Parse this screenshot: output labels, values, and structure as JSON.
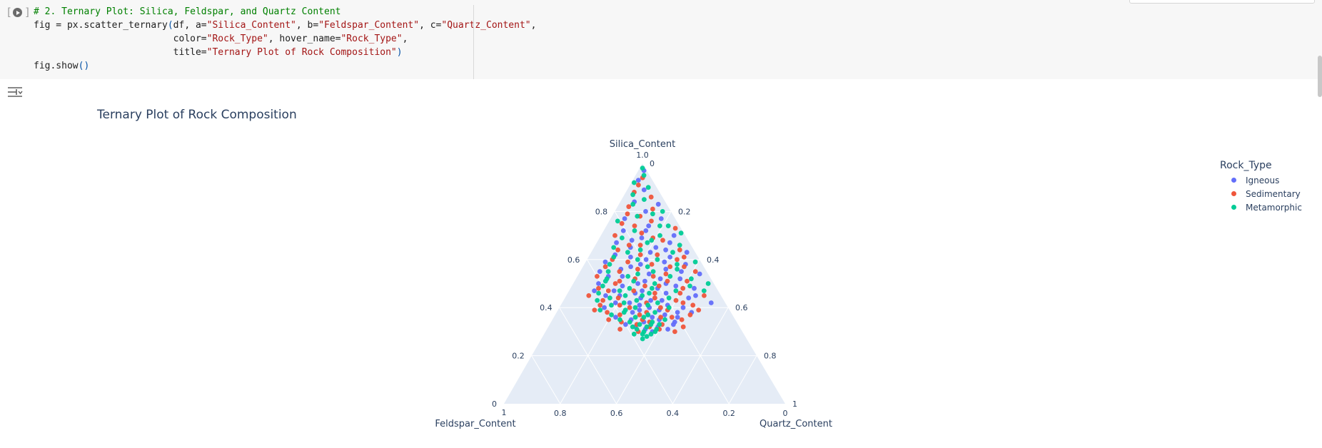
{
  "cell": {
    "run_bracket_open": "[",
    "run_bracket_close": "]",
    "code_lines": [
      [
        {
          "t": "# 2. Ternary Plot: Silica, Feldspar, and Quartz Content",
          "c": "com"
        }
      ],
      [
        {
          "t": "fig = px.scatter_ternary",
          "c": ""
        },
        {
          "t": "(",
          "c": "par"
        },
        {
          "t": "df, a=",
          "c": ""
        },
        {
          "t": "\"Silica_Content\"",
          "c": "str"
        },
        {
          "t": ", b=",
          "c": ""
        },
        {
          "t": "\"Feldspar_Content\"",
          "c": "str"
        },
        {
          "t": ", c=",
          "c": ""
        },
        {
          "t": "\"Quartz_Content\"",
          "c": "str"
        },
        {
          "t": ",",
          "c": ""
        }
      ],
      [
        {
          "t": "                         color=",
          "c": ""
        },
        {
          "t": "\"Rock_Type\"",
          "c": "str"
        },
        {
          "t": ", hover_name=",
          "c": ""
        },
        {
          "t": "\"Rock_Type\"",
          "c": "str"
        },
        {
          "t": ",",
          "c": ""
        }
      ],
      [
        {
          "t": "                         title=",
          "c": ""
        },
        {
          "t": "\"Ternary Plot of Rock Composition\"",
          "c": "str"
        },
        {
          "t": ")",
          "c": "par"
        }
      ],
      [
        {
          "t": "fig.show",
          "c": ""
        },
        {
          "t": "()",
          "c": "par"
        }
      ]
    ]
  },
  "output": {
    "icon": "output-settings-icon"
  },
  "chart_data": {
    "type": "scatter",
    "subtype": "ternary",
    "title": "Ternary Plot of Rock Composition",
    "axes": {
      "a": {
        "label": "Silica_Content",
        "ticks": [
          "0",
          "0.2",
          "0.4",
          "0.6",
          "0.8",
          "1.0"
        ]
      },
      "b": {
        "label": "Feldspar_Content",
        "ticks": [
          "1",
          "0.8",
          "0.6",
          "0.4",
          "0.2",
          "0"
        ]
      },
      "c": {
        "label": "Quartz_Content",
        "ticks": [
          "0",
          "0.2",
          "0.4",
          "0.6",
          "0.8",
          "1"
        ]
      }
    },
    "legend": {
      "title": "Rock_Type",
      "placement": "top-right"
    },
    "bg_color": "#e5ecf6",
    "grid": true,
    "series": [
      {
        "name": "Igneous",
        "color": "#636efa",
        "points": [
          [
            0.97,
            0.01
          ],
          [
            0.93,
            0.05
          ],
          [
            0.89,
            0.05
          ],
          [
            0.84,
            0.11
          ],
          [
            0.83,
            0.03
          ],
          [
            0.8,
            0.09
          ],
          [
            0.77,
            0.05
          ],
          [
            0.77,
            0.18
          ],
          [
            0.74,
            0.11
          ],
          [
            0.72,
            0.21
          ],
          [
            0.7,
            0.04
          ],
          [
            0.69,
            0.16
          ],
          [
            0.67,
            0.07
          ],
          [
            0.67,
            0.26
          ],
          [
            0.65,
            0.22
          ],
          [
            0.65,
            0.13
          ],
          [
            0.63,
            0.03
          ],
          [
            0.62,
            0.29
          ],
          [
            0.61,
            0.1
          ],
          [
            0.6,
            0.19
          ],
          [
            0.59,
            0.34
          ],
          [
            0.58,
            0.06
          ],
          [
            0.57,
            0.26
          ],
          [
            0.56,
            0.14
          ],
          [
            0.55,
            0.38
          ],
          [
            0.54,
            0.21
          ],
          [
            0.54,
            0.03
          ],
          [
            0.53,
            0.31
          ],
          [
            0.52,
            0.11
          ],
          [
            0.51,
            0.24
          ],
          [
            0.5,
            0.41
          ],
          [
            0.5,
            0.17
          ],
          [
            0.49,
            0.33
          ],
          [
            0.48,
            0.08
          ],
          [
            0.47,
            0.27
          ],
          [
            0.47,
            0.44
          ],
          [
            0.46,
            0.19
          ],
          [
            0.45,
            0.36
          ],
          [
            0.44,
            0.12
          ],
          [
            0.44,
            0.29
          ],
          [
            0.43,
            0.22
          ],
          [
            0.42,
            0.39
          ],
          [
            0.42,
            0.05
          ],
          [
            0.41,
            0.31
          ],
          [
            0.4,
            0.16
          ],
          [
            0.4,
            0.44
          ],
          [
            0.39,
            0.25
          ],
          [
            0.38,
            0.35
          ],
          [
            0.38,
            0.14
          ],
          [
            0.37,
            0.3
          ],
          [
            0.36,
            0.2
          ],
          [
            0.36,
            0.42
          ],
          [
            0.35,
            0.27
          ],
          [
            0.34,
            0.33
          ],
          [
            0.33,
            0.23
          ],
          [
            0.32,
            0.29
          ],
          [
            0.32,
            0.37
          ],
          [
            0.31,
            0.26
          ],
          [
            0.3,
            0.32
          ],
          [
            0.72,
            0.13
          ],
          [
            0.68,
            0.2
          ],
          [
            0.63,
            0.16
          ],
          [
            0.58,
            0.22
          ],
          [
            0.56,
            0.3
          ],
          [
            0.52,
            0.18
          ],
          [
            0.48,
            0.21
          ],
          [
            0.46,
            0.3
          ],
          [
            0.43,
            0.26
          ],
          [
            0.41,
            0.21
          ],
          [
            0.39,
            0.32
          ],
          [
            0.37,
            0.24
          ],
          [
            0.35,
            0.37
          ],
          [
            0.61,
            0.24
          ],
          [
            0.64,
            0.1
          ],
          [
            0.53,
            0.36
          ],
          [
            0.5,
            0.27
          ],
          [
            0.45,
            0.09
          ],
          [
            0.49,
            0.14
          ],
          [
            0.55,
            0.09
          ],
          [
            0.59,
            0.13
          ],
          [
            0.42,
            0.34
          ],
          [
            0.4,
            0.28
          ],
          [
            0.38,
            0.19
          ],
          [
            0.36,
            0.29
          ],
          [
            0.34,
            0.22
          ],
          [
            0.33,
            0.4
          ],
          [
            0.31,
            0.34
          ],
          [
            0.45,
            0.41
          ],
          [
            0.47,
            0.37
          ]
        ]
      },
      {
        "name": "Sedimentary",
        "color": "#ef553b",
        "points": [
          [
            0.94,
            0.03
          ],
          [
            0.91,
            0.06
          ],
          [
            0.88,
            0.09
          ],
          [
            0.86,
            0.04
          ],
          [
            0.82,
            0.14
          ],
          [
            0.81,
            0.06
          ],
          [
            0.79,
            0.16
          ],
          [
            0.76,
            0.09
          ],
          [
            0.75,
            0.2
          ],
          [
            0.73,
            0.02
          ],
          [
            0.71,
            0.15
          ],
          [
            0.7,
            0.25
          ],
          [
            0.68,
            0.09
          ],
          [
            0.66,
            0.18
          ],
          [
            0.64,
            0.27
          ],
          [
            0.64,
            0.05
          ],
          [
            0.62,
            0.14
          ],
          [
            0.6,
            0.31
          ],
          [
            0.6,
            0.08
          ],
          [
            0.58,
            0.18
          ],
          [
            0.57,
            0.35
          ],
          [
            0.56,
            0.24
          ],
          [
            0.55,
            0.04
          ],
          [
            0.54,
            0.15
          ],
          [
            0.53,
            0.4
          ],
          [
            0.52,
            0.27
          ],
          [
            0.51,
            0.09
          ],
          [
            0.5,
            0.35
          ],
          [
            0.49,
            0.2
          ],
          [
            0.48,
            0.42
          ],
          [
            0.48,
            0.12
          ],
          [
            0.47,
            0.3
          ],
          [
            0.46,
            0.23
          ],
          [
            0.45,
            0.47
          ],
          [
            0.45,
            0.06
          ],
          [
            0.44,
            0.37
          ],
          [
            0.43,
            0.17
          ],
          [
            0.42,
            0.28
          ],
          [
            0.41,
            0.45
          ],
          [
            0.41,
            0.12
          ],
          [
            0.4,
            0.35
          ],
          [
            0.39,
            0.22
          ],
          [
            0.39,
            0.48
          ],
          [
            0.38,
            0.3
          ],
          [
            0.37,
            0.15
          ],
          [
            0.37,
            0.4
          ],
          [
            0.36,
            0.26
          ],
          [
            0.35,
            0.19
          ],
          [
            0.35,
            0.45
          ],
          [
            0.34,
            0.31
          ],
          [
            0.33,
            0.36
          ],
          [
            0.32,
            0.2
          ],
          [
            0.31,
            0.43
          ],
          [
            0.31,
            0.29
          ],
          [
            0.3,
            0.24
          ],
          [
            0.69,
            0.12
          ],
          [
            0.66,
            0.22
          ],
          [
            0.62,
            0.2
          ],
          [
            0.59,
            0.26
          ],
          [
            0.57,
            0.12
          ],
          [
            0.55,
            0.31
          ],
          [
            0.53,
            0.2
          ],
          [
            0.51,
            0.33
          ],
          [
            0.49,
            0.25
          ],
          [
            0.46,
            0.14
          ],
          [
            0.44,
            0.24
          ],
          [
            0.43,
            0.43
          ],
          [
            0.41,
            0.38
          ],
          [
            0.39,
            0.11
          ],
          [
            0.37,
            0.33
          ],
          [
            0.36,
            0.22
          ],
          [
            0.34,
            0.41
          ],
          [
            0.33,
            0.27
          ],
          [
            0.51,
            0.16
          ],
          [
            0.57,
            0.07
          ],
          [
            0.47,
            0.39
          ],
          [
            0.42,
            0.15
          ],
          [
            0.4,
            0.24
          ],
          [
            0.35,
            0.33
          ],
          [
            0.38,
            0.44
          ],
          [
            0.32,
            0.32
          ],
          [
            0.3,
            0.37
          ],
          [
            0.61,
            0.05
          ],
          [
            0.74,
            0.16
          ],
          [
            0.78,
            0.12
          ]
        ]
      },
      {
        "name": "Metamorphic",
        "color": "#00cc96",
        "points": [
          [
            0.98,
            0.01
          ],
          [
            0.95,
            0.02
          ],
          [
            0.92,
            0.07
          ],
          [
            0.9,
            0.03
          ],
          [
            0.87,
            0.1
          ],
          [
            0.85,
            0.07
          ],
          [
            0.83,
            0.12
          ],
          [
            0.8,
            0.03
          ],
          [
            0.78,
            0.13
          ],
          [
            0.76,
            0.21
          ],
          [
            0.74,
            0.07
          ],
          [
            0.72,
            0.17
          ],
          [
            0.71,
            0.01
          ],
          [
            0.69,
            0.23
          ],
          [
            0.68,
            0.13
          ],
          [
            0.66,
            0.04
          ],
          [
            0.65,
            0.28
          ],
          [
            0.64,
            0.19
          ],
          [
            0.63,
            0.08
          ],
          [
            0.61,
            0.3
          ],
          [
            0.6,
            0.15
          ],
          [
            0.59,
            0.02
          ],
          [
            0.58,
            0.33
          ],
          [
            0.57,
            0.2
          ],
          [
            0.56,
            0.1
          ],
          [
            0.55,
            0.35
          ],
          [
            0.54,
            0.25
          ],
          [
            0.53,
            0.14
          ],
          [
            0.52,
            0.37
          ],
          [
            0.51,
            0.28
          ],
          [
            0.5,
            0.02
          ],
          [
            0.5,
            0.21
          ],
          [
            0.49,
            0.4
          ],
          [
            0.48,
            0.31
          ],
          [
            0.47,
            0.15
          ],
          [
            0.46,
            0.43
          ],
          [
            0.46,
            0.25
          ],
          [
            0.45,
            0.34
          ],
          [
            0.44,
            0.19
          ],
          [
            0.43,
            0.45
          ],
          [
            0.43,
            0.31
          ],
          [
            0.42,
            0.24
          ],
          [
            0.41,
            0.41
          ],
          [
            0.4,
            0.33
          ],
          [
            0.4,
            0.21
          ],
          [
            0.39,
            0.46
          ],
          [
            0.38,
            0.27
          ],
          [
            0.38,
            0.38
          ],
          [
            0.37,
            0.3
          ],
          [
            0.36,
            0.35
          ],
          [
            0.35,
            0.25
          ],
          [
            0.35,
            0.41
          ],
          [
            0.34,
            0.3
          ],
          [
            0.33,
            0.35
          ],
          [
            0.33,
            0.28
          ],
          [
            0.32,
            0.33
          ],
          [
            0.31,
            0.3
          ],
          [
            0.3,
            0.35
          ],
          [
            0.29,
            0.33
          ],
          [
            0.29,
            0.36
          ],
          [
            0.7,
            0.09
          ],
          [
            0.67,
            0.15
          ],
          [
            0.63,
            0.24
          ],
          [
            0.6,
            0.22
          ],
          [
            0.58,
            0.09
          ],
          [
            0.55,
            0.19
          ],
          [
            0.53,
            0.29
          ],
          [
            0.51,
            0.38
          ],
          [
            0.48,
            0.23
          ],
          [
            0.47,
            0.35
          ],
          [
            0.45,
            0.28
          ],
          [
            0.44,
            0.4
          ],
          [
            0.42,
            0.36
          ],
          [
            0.41,
            0.28
          ],
          [
            0.39,
            0.37
          ],
          [
            0.37,
            0.43
          ],
          [
            0.36,
            0.32
          ],
          [
            0.34,
            0.38
          ],
          [
            0.33,
            0.31
          ],
          [
            0.32,
            0.38
          ],
          [
            0.31,
            0.37
          ],
          [
            0.29,
            0.39
          ],
          [
            0.3,
            0.31
          ],
          [
            0.28,
            0.35
          ],
          [
            0.27,
            0.37
          ],
          [
            0.49,
            0.09
          ],
          [
            0.52,
            0.07
          ],
          [
            0.47,
            0.05
          ],
          [
            0.74,
            0.04
          ],
          [
            0.79,
            0.07
          ]
        ]
      }
    ]
  }
}
